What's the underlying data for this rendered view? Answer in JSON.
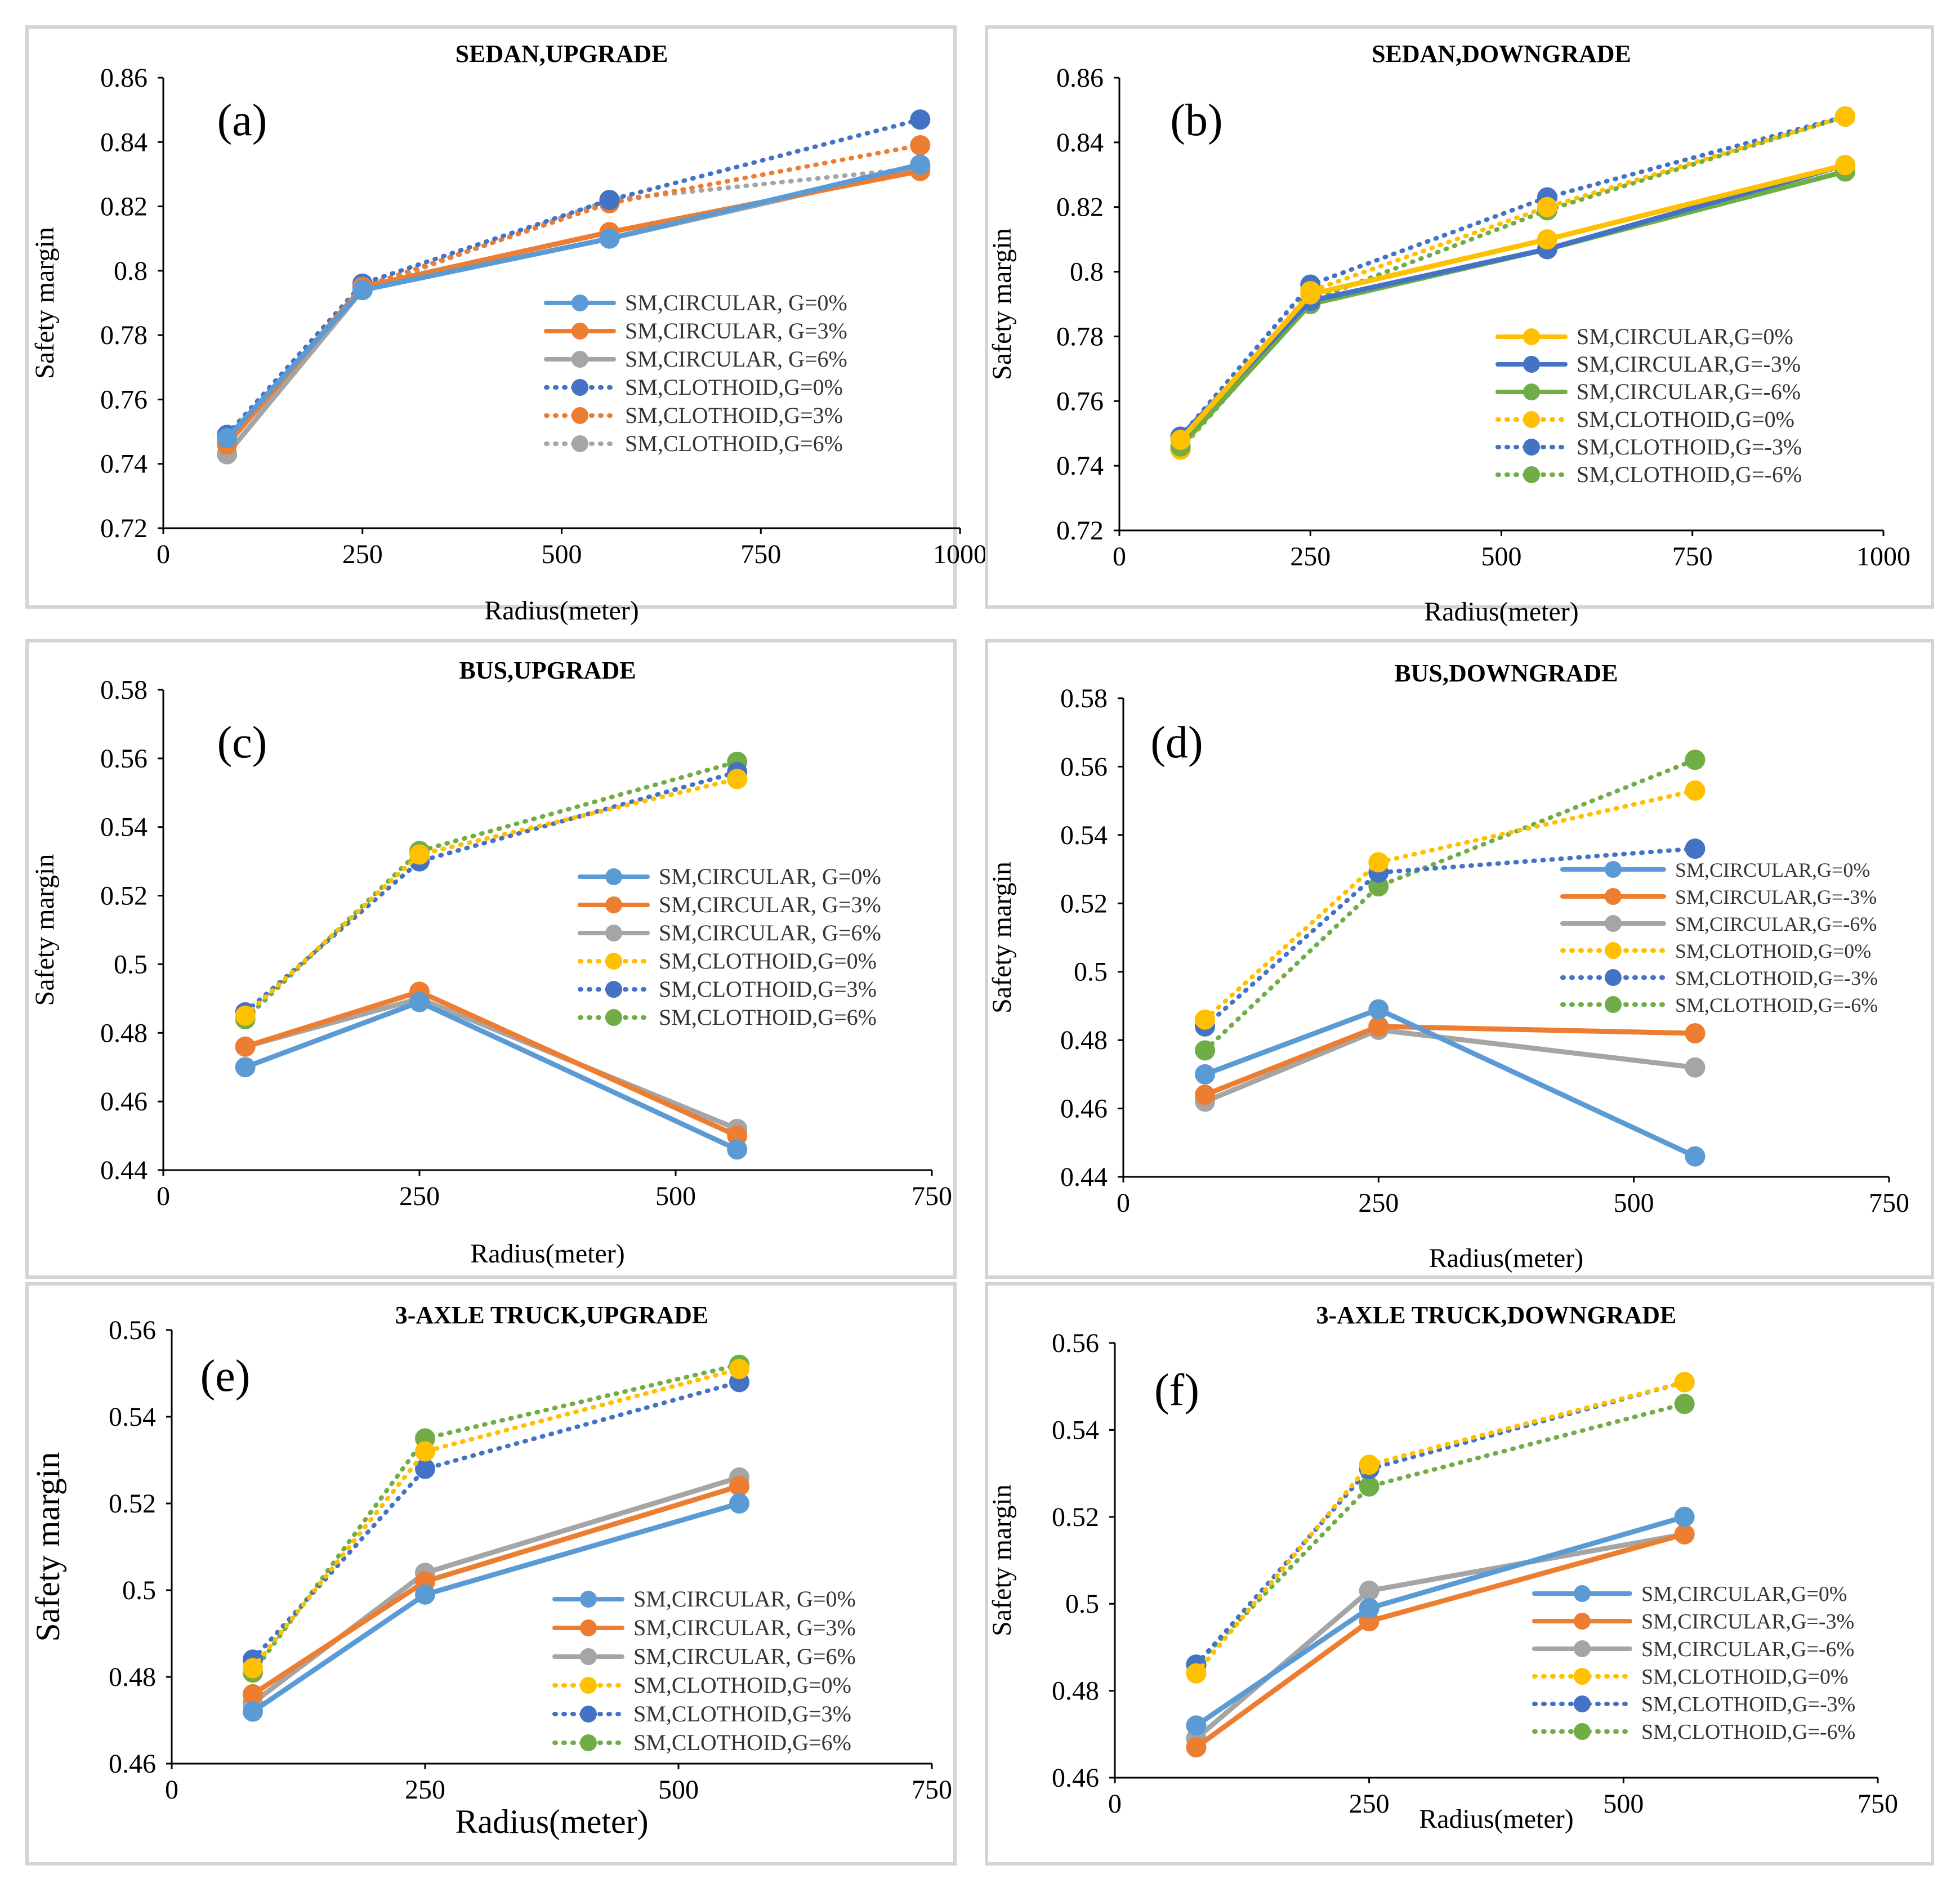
{
  "colors": {
    "blue": "#5b9bd5",
    "orange": "#ed7d31",
    "gray": "#a5a5a5",
    "yellow": "#ffc000",
    "darkblue": "#4472c4",
    "green": "#70ad47"
  },
  "chart_data": [
    {
      "type": "line",
      "panel_label": "(a)",
      "title": "SEDAN,UPGRADE",
      "xlabel": "Radius(meter)",
      "ylabel": "Safety margin",
      "xlim": [
        0,
        1000
      ],
      "xticks": [
        0,
        250,
        500,
        750,
        1000
      ],
      "ylim": [
        0.72,
        0.86
      ],
      "yticks": [
        0.72,
        0.74,
        0.76,
        0.78,
        0.8,
        0.82,
        0.84,
        0.86
      ],
      "legend_position": "center-right",
      "series": [
        {
          "name": "SM,CIRCULAR, G=0%",
          "style": "solid",
          "color": "blue",
          "x": [
            80,
            250,
            560,
            950
          ],
          "y": [
            0.748,
            0.794,
            0.81,
            0.833
          ]
        },
        {
          "name": "SM,CIRCULAR, G=3%",
          "style": "solid",
          "color": "orange",
          "x": [
            80,
            250,
            560,
            950
          ],
          "y": [
            0.746,
            0.795,
            0.812,
            0.831
          ]
        },
        {
          "name": "SM,CIRCULAR, G=6%",
          "style": "solid",
          "color": "gray",
          "x": [
            80,
            250,
            560,
            950
          ],
          "y": [
            0.743,
            0.794,
            0.81,
            0.832
          ]
        },
        {
          "name": "SM,CLOTHOID,G=0%",
          "style": "dotted",
          "color": "darkblue",
          "x": [
            80,
            250,
            560,
            950
          ],
          "y": [
            0.749,
            0.796,
            0.822,
            0.847
          ]
        },
        {
          "name": "SM,CLOTHOID,G=3%",
          "style": "dotted",
          "color": "orange",
          "x": [
            80,
            250,
            560,
            950
          ],
          "y": [
            0.747,
            0.795,
            0.821,
            0.839
          ]
        },
        {
          "name": "SM,CLOTHOID,G=6%",
          "style": "dotted",
          "color": "gray",
          "x": [
            80,
            250,
            560,
            950
          ],
          "y": [
            0.743,
            0.794,
            0.822,
            0.832
          ]
        }
      ]
    },
    {
      "type": "line",
      "panel_label": "(b)",
      "title": "SEDAN,DOWNGRADE",
      "xlabel": "Radius(meter)",
      "ylabel": "Safety margin",
      "xlim": [
        0,
        1000
      ],
      "xticks": [
        0,
        250,
        500,
        750,
        1000
      ],
      "ylim": [
        0.72,
        0.86
      ],
      "yticks": [
        0.72,
        0.74,
        0.76,
        0.78,
        0.8,
        0.82,
        0.84,
        0.86
      ],
      "legend_position": "lower-right",
      "series": [
        {
          "name": "SM,CIRCULAR,G=0%",
          "style": "solid",
          "color": "yellow",
          "x": [
            80,
            250,
            560,
            950
          ],
          "y": [
            0.748,
            0.793,
            0.81,
            0.833
          ]
        },
        {
          "name": "SM,CIRCULAR,G=-3%",
          "style": "solid",
          "color": "darkblue",
          "x": [
            80,
            250,
            560,
            950
          ],
          "y": [
            0.749,
            0.791,
            0.807,
            0.833
          ]
        },
        {
          "name": "SM,CIRCULAR,G=-6%",
          "style": "solid",
          "color": "green",
          "x": [
            80,
            250,
            560,
            950
          ],
          "y": [
            0.746,
            0.79,
            0.807,
            0.831
          ]
        },
        {
          "name": "SM,CLOTHOID,G=0%",
          "style": "dotted",
          "color": "yellow",
          "x": [
            80,
            250,
            560,
            950
          ],
          "y": [
            0.745,
            0.794,
            0.82,
            0.848
          ]
        },
        {
          "name": "SM,CLOTHOID,G=-3%",
          "style": "dotted",
          "color": "darkblue",
          "x": [
            80,
            250,
            560,
            950
          ],
          "y": [
            0.749,
            0.796,
            0.823,
            0.848
          ]
        },
        {
          "name": "SM,CLOTHOID,G=-6%",
          "style": "dotted",
          "color": "green",
          "x": [
            80,
            250,
            560,
            950
          ],
          "y": [
            0.745,
            0.791,
            0.819,
            0.848
          ]
        }
      ]
    },
    {
      "type": "line",
      "panel_label": "(c)",
      "title": "BUS,UPGRADE",
      "xlabel": "Radius(meter)",
      "ylabel": "Safety margin",
      "xlim": [
        0,
        750
      ],
      "xticks": [
        0,
        250,
        500,
        750
      ],
      "ylim": [
        0.44,
        0.58
      ],
      "yticks": [
        0.44,
        0.46,
        0.48,
        0.5,
        0.52,
        0.54,
        0.56,
        0.58
      ],
      "legend_position": "center-right",
      "series": [
        {
          "name": "SM,CIRCULAR, G=0%",
          "style": "solid",
          "color": "blue",
          "x": [
            80,
            250,
            560
          ],
          "y": [
            0.47,
            0.489,
            0.446
          ]
        },
        {
          "name": "SM,CIRCULAR, G=3%",
          "style": "solid",
          "color": "orange",
          "x": [
            80,
            250,
            560
          ],
          "y": [
            0.476,
            0.492,
            0.45
          ]
        },
        {
          "name": "SM,CIRCULAR, G=6%",
          "style": "solid",
          "color": "gray",
          "x": [
            80,
            250,
            560
          ],
          "y": [
            0.476,
            0.49,
            0.452
          ]
        },
        {
          "name": "SM,CLOTHOID,G=0%",
          "style": "dotted",
          "color": "yellow",
          "x": [
            80,
            250,
            560
          ],
          "y": [
            0.485,
            0.532,
            0.554
          ]
        },
        {
          "name": "SM,CLOTHOID,G=3%",
          "style": "dotted",
          "color": "darkblue",
          "x": [
            80,
            250,
            560
          ],
          "y": [
            0.486,
            0.53,
            0.556
          ]
        },
        {
          "name": "SM,CLOTHOID,G=6%",
          "style": "dotted",
          "color": "green",
          "x": [
            80,
            250,
            560
          ],
          "y": [
            0.484,
            0.533,
            0.559
          ]
        }
      ]
    },
    {
      "type": "line",
      "panel_label": "(d)",
      "title": "BUS,DOWNGRADE",
      "xlabel": "Radius(meter)",
      "ylabel": "Safety margin",
      "xlim": [
        0,
        750
      ],
      "xticks": [
        0,
        250,
        500,
        750
      ],
      "ylim": [
        0.44,
        0.58
      ],
      "yticks": [
        0.44,
        0.46,
        0.48,
        0.5,
        0.52,
        0.54,
        0.56,
        0.58
      ],
      "legend_position": "center-right",
      "series": [
        {
          "name": "SM,CIRCULAR,G=0%",
          "style": "solid",
          "color": "blue",
          "x": [
            80,
            250,
            560
          ],
          "y": [
            0.47,
            0.489,
            0.446
          ]
        },
        {
          "name": "SM,CIRCULAR,G=-3%",
          "style": "solid",
          "color": "orange",
          "x": [
            80,
            250,
            560
          ],
          "y": [
            0.464,
            0.484,
            0.482
          ]
        },
        {
          "name": "SM,CIRCULAR,G=-6%",
          "style": "solid",
          "color": "gray",
          "x": [
            80,
            250,
            560
          ],
          "y": [
            0.462,
            0.483,
            0.472
          ]
        },
        {
          "name": "SM,CLOTHOID,G=0%",
          "style": "dotted",
          "color": "yellow",
          "x": [
            80,
            250,
            560
          ],
          "y": [
            0.486,
            0.532,
            0.553
          ]
        },
        {
          "name": "SM,CLOTHOID,G=-3%",
          "style": "dotted",
          "color": "darkblue",
          "x": [
            80,
            250,
            560
          ],
          "y": [
            0.484,
            0.529,
            0.536
          ]
        },
        {
          "name": "SM,CLOTHOID,G=-6%",
          "style": "dotted",
          "color": "green",
          "x": [
            80,
            250,
            560
          ],
          "y": [
            0.477,
            0.525,
            0.562
          ]
        }
      ]
    },
    {
      "type": "line",
      "panel_label": "(e)",
      "title": "3-AXLE TRUCK,UPGRADE",
      "xlabel": "Radius(meter)",
      "ylabel": "Safety margin",
      "xlim": [
        0,
        750
      ],
      "xticks": [
        0,
        250,
        500,
        750
      ],
      "ylim": [
        0.46,
        0.56
      ],
      "yticks": [
        0.46,
        0.48,
        0.5,
        0.52,
        0.54,
        0.56
      ],
      "legend_position": "lower-right",
      "series": [
        {
          "name": "SM,CIRCULAR, G=0%",
          "style": "solid",
          "color": "blue",
          "x": [
            80,
            250,
            560
          ],
          "y": [
            0.472,
            0.499,
            0.52
          ]
        },
        {
          "name": "SM,CIRCULAR, G=3%",
          "style": "solid",
          "color": "orange",
          "x": [
            80,
            250,
            560
          ],
          "y": [
            0.476,
            0.502,
            0.524
          ]
        },
        {
          "name": "SM,CIRCULAR, G=6%",
          "style": "solid",
          "color": "gray",
          "x": [
            80,
            250,
            560
          ],
          "y": [
            0.474,
            0.504,
            0.526
          ]
        },
        {
          "name": "SM,CLOTHOID,G=0%",
          "style": "dotted",
          "color": "yellow",
          "x": [
            80,
            250,
            560
          ],
          "y": [
            0.482,
            0.532,
            0.551
          ]
        },
        {
          "name": "SM,CLOTHOID,G=3%",
          "style": "dotted",
          "color": "darkblue",
          "x": [
            80,
            250,
            560
          ],
          "y": [
            0.484,
            0.528,
            0.548
          ]
        },
        {
          "name": "SM,CLOTHOID,G=6%",
          "style": "dotted",
          "color": "green",
          "x": [
            80,
            250,
            560
          ],
          "y": [
            0.481,
            0.535,
            0.552
          ]
        }
      ]
    },
    {
      "type": "line",
      "panel_label": "(f)",
      "title": "3-AXLE TRUCK,DOWNGRADE",
      "xlabel": "Radius(meter)",
      "ylabel": "Safety margin",
      "xlim": [
        0,
        750
      ],
      "xticks": [
        0,
        250,
        500,
        750
      ],
      "ylim": [
        0.46,
        0.56
      ],
      "yticks": [
        0.46,
        0.48,
        0.5,
        0.52,
        0.54,
        0.56
      ],
      "legend_position": "lower-right",
      "series": [
        {
          "name": "SM,CIRCULAR,G=0%",
          "style": "solid",
          "color": "blue",
          "x": [
            80,
            250,
            560
          ],
          "y": [
            0.472,
            0.499,
            0.52
          ]
        },
        {
          "name": "SM,CIRCULAR,G=-3%",
          "style": "solid",
          "color": "orange",
          "x": [
            80,
            250,
            560
          ],
          "y": [
            0.467,
            0.496,
            0.516
          ]
        },
        {
          "name": "SM,CIRCULAR,G=-6%",
          "style": "solid",
          "color": "gray",
          "x": [
            80,
            250,
            560
          ],
          "y": [
            0.469,
            0.503,
            0.516
          ]
        },
        {
          "name": "SM,CLOTHOID,G=0%",
          "style": "dotted",
          "color": "yellow",
          "x": [
            80,
            250,
            560
          ],
          "y": [
            0.484,
            0.532,
            0.551
          ]
        },
        {
          "name": "SM,CLOTHOID,G=-3%",
          "style": "dotted",
          "color": "darkblue",
          "x": [
            80,
            250,
            560
          ],
          "y": [
            0.486,
            0.531,
            0.551
          ]
        },
        {
          "name": "SM,CLOTHOID,G=-6%",
          "style": "dotted",
          "color": "green",
          "x": [
            80,
            250,
            560
          ],
          "y": [
            0.486,
            0.527,
            0.546
          ]
        }
      ]
    }
  ]
}
